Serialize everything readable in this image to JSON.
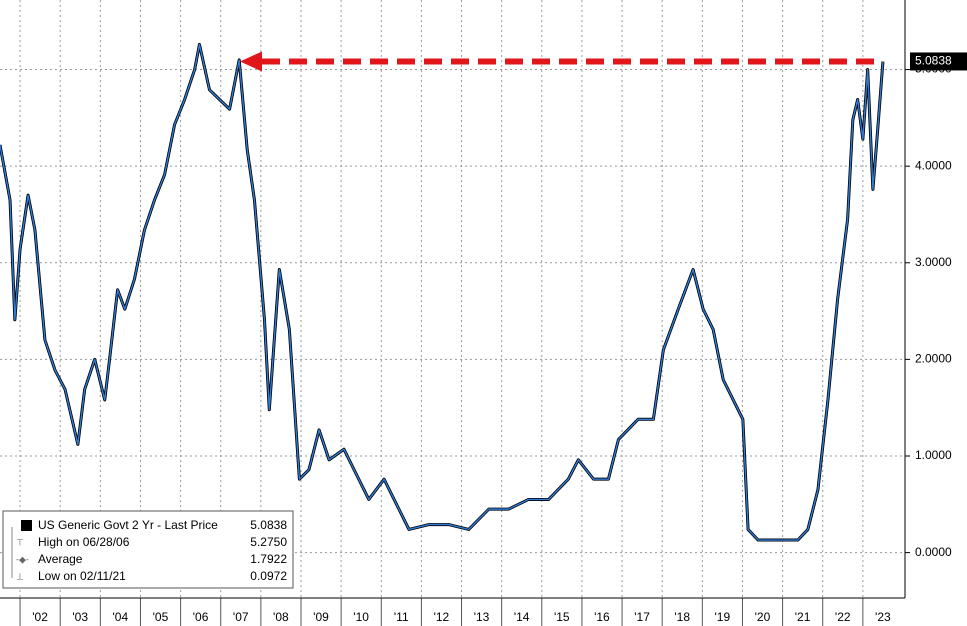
{
  "chart_data": {
    "type": "line",
    "x": [
      2001.5,
      2001.75,
      2001.87,
      2002.0,
      2002.2,
      2002.37,
      2002.62,
      2002.87,
      2003.12,
      2003.44,
      2003.61,
      2003.86,
      2004.11,
      2004.23,
      2004.43,
      2004.61,
      2004.85,
      2005.1,
      2005.35,
      2005.6,
      2005.85,
      2006.1,
      2006.35,
      2006.47,
      2006.72,
      2006.97,
      2007.22,
      2007.46,
      2007.66,
      2007.84,
      2008.09,
      2008.21,
      2008.46,
      2008.71,
      2008.96,
      2009.2,
      2009.45,
      2009.7,
      2010.07,
      2010.32,
      2010.69,
      2011.07,
      2011.44,
      2011.69,
      2012.19,
      2012.68,
      2013.18,
      2013.68,
      2014.17,
      2014.67,
      2015.17,
      2015.66,
      2015.91,
      2016.29,
      2016.66,
      2016.91,
      2017.4,
      2017.78,
      2018.03,
      2018.4,
      2018.77,
      2019.02,
      2019.27,
      2019.52,
      2019.77,
      2020.01,
      2020.14,
      2020.39,
      2020.88,
      2021.38,
      2021.63,
      2021.88,
      2022.13,
      2022.37,
      2022.62,
      2022.75,
      2022.87,
      2023.0,
      2023.12,
      2023.25,
      2023.37,
      2023.5
    ],
    "series": [
      {
        "name": "US Generic Govt 2 Yr - Last Price",
        "color": "#2f7bd6",
        "values": [
          4.22,
          3.65,
          2.41,
          3.14,
          3.7,
          3.34,
          2.2,
          1.89,
          1.69,
          1.12,
          1.69,
          2.0,
          1.58,
          2.0,
          2.72,
          2.52,
          2.83,
          3.34,
          3.65,
          3.91,
          4.43,
          4.69,
          5.0,
          5.26,
          4.79,
          4.69,
          4.59,
          5.1,
          4.17,
          3.65,
          2.41,
          1.48,
          2.93,
          2.31,
          0.76,
          0.86,
          1.27,
          0.96,
          1.07,
          0.86,
          0.55,
          0.76,
          0.45,
          0.24,
          0.29,
          0.29,
          0.24,
          0.45,
          0.45,
          0.55,
          0.55,
          0.76,
          0.96,
          0.76,
          0.76,
          1.17,
          1.38,
          1.38,
          2.1,
          2.52,
          2.93,
          2.52,
          2.31,
          1.79,
          1.58,
          1.38,
          0.24,
          0.13,
          0.13,
          0.13,
          0.24,
          0.65,
          1.58,
          2.62,
          3.45,
          4.48,
          4.69,
          4.28,
          5.0,
          3.76,
          4.38,
          5.0838
        ]
      }
    ],
    "xlim": [
      2001.5,
      2024.05
    ],
    "xticks": [
      {
        "value": 2002,
        "label": "'02"
      },
      {
        "value": 2003,
        "label": "'03"
      },
      {
        "value": 2004,
        "label": "'04"
      },
      {
        "value": 2005,
        "label": "'05"
      },
      {
        "value": 2006,
        "label": "'06"
      },
      {
        "value": 2007,
        "label": "'07"
      },
      {
        "value": 2008,
        "label": "'08"
      },
      {
        "value": 2009,
        "label": "'09"
      },
      {
        "value": 2010,
        "label": "'10"
      },
      {
        "value": 2011,
        "label": "'11"
      },
      {
        "value": 2012,
        "label": "'12"
      },
      {
        "value": 2013,
        "label": "'13"
      },
      {
        "value": 2014,
        "label": "'14"
      },
      {
        "value": 2015,
        "label": "'15"
      },
      {
        "value": 2016,
        "label": "'16"
      },
      {
        "value": 2017,
        "label": "'17"
      },
      {
        "value": 2018,
        "label": "'18"
      },
      {
        "value": 2019,
        "label": "'19"
      },
      {
        "value": 2020,
        "label": "'20"
      },
      {
        "value": 2021,
        "label": "'21"
      },
      {
        "value": 2022,
        "label": "'22"
      },
      {
        "value": 2023,
        "label": "'23"
      }
    ],
    "ylim": [
      -0.47,
      5.72
    ],
    "yticks": [
      {
        "value": 0,
        "label": "0.0000"
      },
      {
        "value": 1,
        "label": "1.0000"
      },
      {
        "value": 2,
        "label": "2.0000"
      },
      {
        "value": 3,
        "label": "3.0000"
      },
      {
        "value": 4,
        "label": "4.0000"
      },
      {
        "value": 5,
        "label": "5.0000"
      }
    ],
    "grid": true,
    "last_price": {
      "value": 5.0838,
      "label": "5.0838"
    },
    "stats": {
      "labels": [
        "High on 06/28/06",
        "Average",
        "Low on 02/11/21"
      ],
      "values": [
        5.275,
        1.7922,
        0.0972
      ],
      "value_labels": [
        "5.2750",
        "1.7922",
        "0.0972"
      ]
    }
  }
}
